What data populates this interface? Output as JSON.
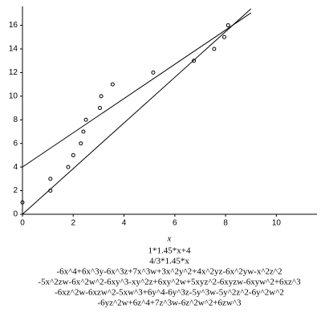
{
  "chart_data": {
    "type": "scatter",
    "x_label": "x",
    "xlim": [
      0,
      11.6
    ],
    "ylim": [
      0,
      17.6
    ],
    "xticks": [
      0,
      2,
      4,
      6,
      8,
      10
    ],
    "yticks": [
      0,
      2,
      4,
      6,
      8,
      10,
      12,
      14,
      16
    ],
    "series": [
      {
        "mode": "markers",
        "color": "#000000",
        "x": [
          0,
          1.1,
          1.1,
          1.8,
          2.0,
          2.3,
          2.4,
          2.5,
          3.05,
          3.1,
          3.55,
          5.15,
          6.75,
          7.55,
          7.95,
          8.1
        ],
        "values": [
          1,
          3,
          2,
          4,
          5,
          6,
          7,
          8,
          9,
          10,
          11,
          12,
          13,
          14,
          15,
          16
        ]
      },
      {
        "mode": "line",
        "color": "#000000",
        "x": [
          0,
          9
        ],
        "values": [
          4,
          17.05
        ]
      },
      {
        "mode": "line",
        "color": "#000000",
        "x": [
          0,
          9
        ],
        "values": [
          0,
          17.4
        ]
      }
    ],
    "annotations": [
      "1*1.45*x+4",
      "4/3*1.45*x",
      "-6x^4+6x^3y-6x^3z+7x^3w+3x^2y^2+4x^2yz-6x^2yw-x^2z^2",
      "-5x^2zw-6x^2w^2-6xy^3-xy^2z+6xy^2w+5xyz^2-6xyzw-6xyw^2+6xz^3",
      "-6xz^2w-6xzw^2-5xw^3+6y^4-6y^3z-5y^3w-5y^2z^2-6y^2w^2",
      "-6yz^2w+6z^4+7z^3w-6z^2w^2+6zw^3"
    ]
  }
}
